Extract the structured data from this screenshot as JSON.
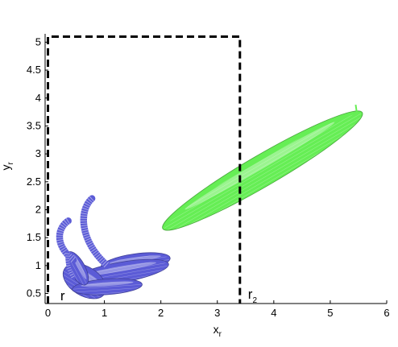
{
  "chart_data": {
    "type": "scatter",
    "title": "",
    "xlabel": {
      "main": "x",
      "sub": "r"
    },
    "ylabel": {
      "main": "y",
      "sub": "r"
    },
    "xlim": [
      -0.05,
      6
    ],
    "ylim": [
      0.32,
      5.15
    ],
    "x_ticks": [
      0,
      1,
      2,
      3,
      4,
      5,
      6
    ],
    "y_ticks": [
      0.5,
      1,
      1.5,
      2,
      2.5,
      3,
      3.5,
      4,
      4.5,
      5
    ],
    "grid": false,
    "regions": [
      {
        "label": "r",
        "sub": "2",
        "x0": 0,
        "x1": 3.4,
        "y0": 0.32,
        "y1": 5.1
      }
    ],
    "partial_labels": [
      {
        "text": "r",
        "x": 0.22,
        "y": 0.38
      }
    ],
    "series": [
      {
        "color": "#66ee55",
        "shapes": [
          {
            "kind": "ellipse",
            "cx": 3.8,
            "cy": 2.7,
            "rx": 2.05,
            "ry": 0.28,
            "angle_deg": 30.5
          }
        ],
        "tip": {
          "x": 5.45,
          "y": 3.88
        }
      },
      {
        "color": "#5b5bd6",
        "shapes": [
          {
            "kind": "ellipse",
            "cx": 1.55,
            "cy": 1.05,
            "rx": 0.62,
            "ry": 0.16,
            "angle_deg": 8
          },
          {
            "kind": "ellipse",
            "cx": 1.3,
            "cy": 0.88,
            "rx": 0.85,
            "ry": 0.18,
            "angle_deg": 10
          },
          {
            "kind": "ellipse",
            "cx": 0.65,
            "cy": 0.72,
            "rx": 0.42,
            "ry": 0.26,
            "angle_deg": -32
          },
          {
            "kind": "ellipse",
            "cx": 1.05,
            "cy": 0.62,
            "rx": 0.62,
            "ry": 0.14,
            "angle_deg": 4
          },
          {
            "kind": "ellipse",
            "cx": 0.52,
            "cy": 0.95,
            "rx": 0.33,
            "ry": 0.14,
            "angle_deg": -62
          },
          {
            "kind": "curve",
            "points": [
              [
                0.78,
                2.2
              ],
              [
                0.55,
                2.0
              ],
              [
                0.55,
                1.45
              ],
              [
                1.05,
                1.0
              ]
            ],
            "width": 0.12
          },
          {
            "kind": "curve",
            "points": [
              [
                0.36,
                1.8
              ],
              [
                0.2,
                1.7
              ],
              [
                0.08,
                1.4
              ],
              [
                0.45,
                1.1
              ]
            ],
            "width": 0.12
          },
          {
            "kind": "curve",
            "points": [
              [
                0.35,
                1.22
              ],
              [
                0.33,
                1.05
              ],
              [
                0.38,
                0.9
              ],
              [
                0.45,
                0.78
              ]
            ],
            "width": 0.07
          }
        ]
      }
    ]
  }
}
